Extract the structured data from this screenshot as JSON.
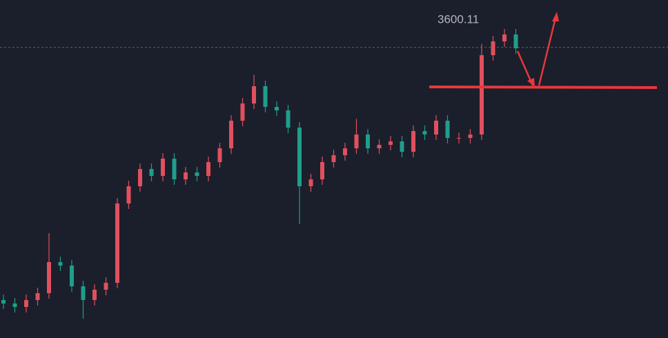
{
  "chart_data": {
    "type": "candlestick",
    "open": [
      3387.7,
      3384.8,
      3381.9,
      3387.7,
      3393.5,
      3419.6,
      3416.7,
      3399.3,
      3387.7,
      3396.4,
      3402.2,
      3468.9,
      3483.4,
      3497.9,
      3492.1,
      3506.6,
      3489.2,
      3495,
      3492.1,
      3503.7,
      3515.3,
      3538.5,
      3553,
      3567.5,
      3550.1,
      3547.2,
      3532.7,
      3483.4,
      3489.2,
      3503.7,
      3509.5,
      3515.3,
      3526.9,
      3515.3,
      3518.2,
      3521.1,
      3512.4,
      3529.8,
      3526.9,
      3538.5,
      3524,
      3524,
      3526.9,
      3593.6,
      3605.2,
      3611
    ],
    "high": [
      3392.3,
      3389.4,
      3392.3,
      3398.1,
      3444,
      3424.2,
      3421.3,
      3403.9,
      3401,
      3406.8,
      3473.5,
      3488,
      3502.5,
      3502.5,
      3511.2,
      3511.2,
      3499.6,
      3499.6,
      3508.3,
      3519.9,
      3543.1,
      3557.6,
      3577,
      3572.1,
      3554.7,
      3551.8,
      3537.3,
      3493.8,
      3508.3,
      3514.1,
      3519.9,
      3540,
      3531.5,
      3522.8,
      3525.7,
      3525.7,
      3534.4,
      3534.4,
      3543.1,
      3543.1,
      3528.6,
      3531.5,
      3603,
      3609.8,
      3615.6,
      3615.6
    ],
    "low": [
      3380.2,
      3377.3,
      3377.3,
      3383.1,
      3388.9,
      3412.1,
      3394.7,
      3372,
      3383.1,
      3391.8,
      3397.6,
      3464.3,
      3478.8,
      3487.5,
      3487.5,
      3484.6,
      3484.6,
      3487.5,
      3487.5,
      3499.1,
      3510.7,
      3533.9,
      3548.4,
      3545.5,
      3542.6,
      3528.1,
      3451.5,
      3478.8,
      3484.6,
      3499.1,
      3504.9,
      3510.7,
      3510.7,
      3510.7,
      3513.6,
      3507.8,
      3507.8,
      3522.3,
      3522.3,
      3519.4,
      3519.4,
      3519.4,
      3522.3,
      3589,
      3600.6,
      3594.8
    ],
    "close": [
      3384.8,
      3381.9,
      3387.7,
      3393.5,
      3419.6,
      3416.7,
      3399.3,
      3387.7,
      3396.4,
      3402.2,
      3468.9,
      3483.4,
      3497.9,
      3492.1,
      3506.6,
      3489.2,
      3495,
      3492.1,
      3503.7,
      3515.3,
      3538.5,
      3553,
      3567.5,
      3550.1,
      3547.2,
      3532.7,
      3483.4,
      3489.2,
      3503.7,
      3509.5,
      3515.3,
      3526.9,
      3515.3,
      3518.2,
      3521.1,
      3512.4,
      3529.8,
      3526.9,
      3538.5,
      3524,
      3524,
      3526.9,
      3593.6,
      3605.2,
      3611,
      3599.4
    ],
    "up_color": "#e0505e",
    "down_color": "#1f9e8c",
    "ylim": [
      3355.8,
      3640
    ],
    "price_line": 3600.11
  }
}
